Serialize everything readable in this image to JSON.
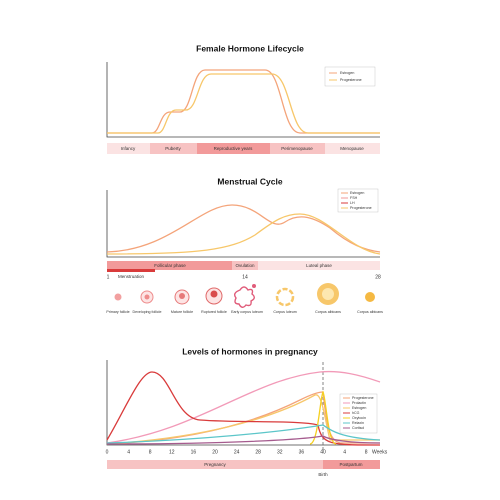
{
  "charts": [
    {
      "title": "Female Hormone Lifecycle",
      "legend": [
        "Estrogen",
        "Progesterone"
      ],
      "phases": [
        "Infancy",
        "Puberty",
        "Reproductive years",
        "Perimenopause",
        "Menopause"
      ]
    },
    {
      "title": "Menstrual Cycle",
      "legend": [
        "Estrogen",
        "FSH",
        "LH",
        "Progesterone"
      ],
      "phases": [
        "Follicular phase",
        "Ovulation",
        "Luteal phase"
      ],
      "day_labels": [
        "1",
        "14",
        "28"
      ],
      "menstruation": "Menstruation",
      "stages": [
        "Primary follicle",
        "Developing follicle",
        "Mature follicle",
        "Ruptured follicle",
        "Early corpus luteum",
        "Corpus luteum",
        "Corpus albicans",
        "Corpus albicans"
      ]
    },
    {
      "title": "Levels of hormones in pregnancy",
      "legend": [
        "Progesterone",
        "Prolactin",
        "Estrogen",
        "hCG",
        "Oxytocin",
        "Relaxin",
        "Cortisol"
      ],
      "week_ticks": [
        0,
        4,
        8,
        12,
        16,
        20,
        24,
        28,
        32,
        36,
        40,
        4,
        8
      ],
      "weeks_label": "Weeks",
      "phases": [
        "Pregnancy",
        "Postpartum"
      ],
      "birth": "Birth"
    }
  ]
}
